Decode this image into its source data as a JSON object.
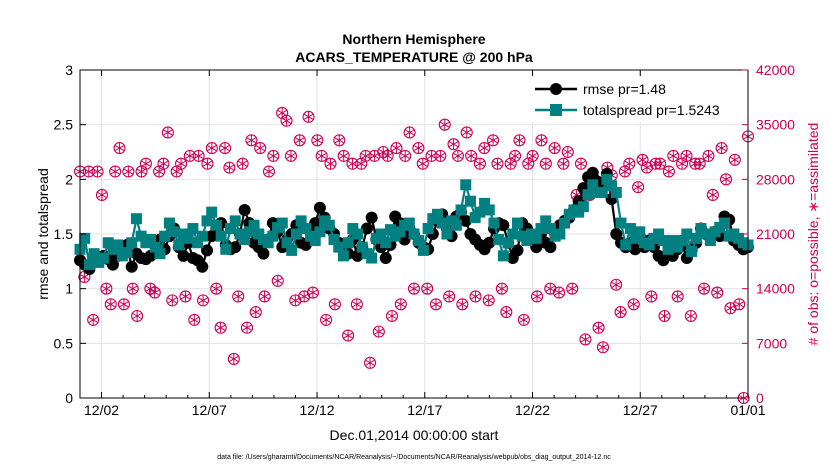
{
  "chart_data": {
    "type": "line",
    "title": "Northern Hemisphere",
    "subtitle": "ACARS_TEMPERATURE @ 200 hPa",
    "xlabel": "Dec.01,2014 00:00:00 start",
    "ylabel": "rmse and totalspread",
    "y2label": "# of obs: o=possible, ∗=assimilated",
    "footnote": "data file: /Users/gharamti/Documents/NCAR/Reanalysis/~/Documents/NCAR/Reanalysis/webpub/obs_diag_output_2014-12.nc",
    "xlim": [
      0,
      31
    ],
    "ylim": [
      0,
      3
    ],
    "y2lim": [
      0,
      42000
    ],
    "x_ticks": [
      1,
      6,
      11,
      16,
      21,
      26,
      31
    ],
    "x_tick_labels": [
      "12/02",
      "12/07",
      "12/12",
      "12/17",
      "12/22",
      "12/27",
      "01/01"
    ],
    "y_ticks": [
      0,
      0.5,
      1,
      1.5,
      2,
      2.5,
      3
    ],
    "y_tick_labels": [
      "0",
      "0.5",
      "1",
      "1.5",
      "2",
      "2.5",
      "3"
    ],
    "y2_ticks": [
      0,
      7000,
      14000,
      21000,
      28000,
      35000,
      42000
    ],
    "y2_tick_labels": [
      "0",
      "7000",
      "14000",
      "21000",
      "28000",
      "35000",
      "42000"
    ],
    "grid": true,
    "legend_position": "top-right",
    "colors": {
      "rmse": "#000000",
      "totalspread": "#008080",
      "obs": "#cc0055"
    },
    "series": [
      {
        "name": "rmse pr=1.48",
        "legend": "rmse pr=1.48",
        "values": [
          1.26,
          1.22,
          1.18,
          1.28,
          1.25,
          1.3,
          1.27,
          1.22,
          1.3,
          1.35,
          1.4,
          1.2,
          1.32,
          1.28,
          1.27,
          1.3,
          1.33,
          1.45,
          1.36,
          1.48,
          1.55,
          1.38,
          1.3,
          1.42,
          1.28,
          1.26,
          1.2,
          1.35,
          1.48,
          1.55,
          1.6,
          1.4,
          1.36,
          1.38,
          1.5,
          1.72,
          1.6,
          1.42,
          1.38,
          1.32,
          1.45,
          1.6,
          1.52,
          1.38,
          1.45,
          1.5,
          1.58,
          1.42,
          1.4,
          1.52,
          1.6,
          1.74,
          1.65,
          1.55,
          1.5,
          1.42,
          1.38,
          1.32,
          1.45,
          1.3,
          1.38,
          1.55,
          1.65,
          1.45,
          1.38,
          1.28,
          1.4,
          1.66,
          1.6,
          1.45,
          1.55,
          1.5,
          1.42,
          1.38,
          1.36,
          1.5,
          1.62,
          1.68,
          1.55,
          1.48,
          1.66,
          1.7,
          1.62,
          1.5,
          1.45,
          1.4,
          1.36,
          1.42,
          1.55,
          1.6,
          1.58,
          1.42,
          1.28,
          1.35,
          1.6,
          1.55,
          1.45,
          1.38,
          1.5,
          1.42,
          1.38,
          1.5,
          1.58,
          1.62,
          1.65,
          1.72,
          1.8,
          1.92,
          2.02,
          2.06,
          1.98,
          1.96,
          2.05,
          1.82,
          1.5,
          1.42,
          1.38,
          1.42,
          1.36,
          1.48,
          1.38,
          1.44,
          1.38,
          1.3,
          1.26,
          1.32,
          1.3,
          1.36,
          1.4,
          1.28,
          1.35,
          1.42,
          1.55,
          1.5,
          1.46,
          1.52,
          1.48,
          1.66,
          1.63,
          1.44,
          1.4,
          1.36,
          1.38
        ]
      },
      {
        "name": "totalspread pr=1.5243",
        "legend": "totalspread pr=1.5243",
        "values": [
          1.36,
          1.46,
          1.22,
          1.32,
          1.24,
          1.28,
          1.42,
          1.36,
          1.4,
          1.3,
          1.33,
          1.42,
          1.64,
          1.48,
          1.42,
          1.45,
          1.38,
          1.32,
          1.48,
          1.6,
          1.52,
          1.4,
          1.5,
          1.46,
          1.55,
          1.42,
          1.48,
          1.62,
          1.7,
          1.58,
          1.48,
          1.36,
          1.55,
          1.62,
          1.5,
          1.45,
          1.52,
          1.58,
          1.5,
          1.45,
          1.42,
          1.48,
          1.56,
          1.6,
          1.42,
          1.35,
          1.5,
          1.62,
          1.55,
          1.48,
          1.44,
          1.52,
          1.62,
          1.58,
          1.45,
          1.38,
          1.3,
          1.42,
          1.55,
          1.5,
          1.38,
          1.32,
          1.28,
          1.46,
          1.5,
          1.42,
          1.54,
          1.48,
          1.52,
          1.58,
          1.6,
          1.5,
          1.44,
          1.35,
          1.55,
          1.64,
          1.68,
          1.6,
          1.5,
          1.62,
          1.58,
          1.72,
          1.95,
          1.8,
          1.65,
          1.7,
          1.78,
          1.72,
          1.6,
          1.45,
          1.3,
          1.42,
          1.5,
          1.6,
          1.48,
          1.44,
          1.5,
          1.46,
          1.55,
          1.62,
          1.55,
          1.48,
          1.5,
          1.6,
          1.68,
          1.72,
          1.7,
          1.75,
          1.86,
          1.95,
          1.88,
          1.88,
          2.0,
          1.94,
          1.88,
          1.6,
          1.4,
          1.55,
          1.46,
          1.52,
          1.42,
          1.4,
          1.46,
          1.5,
          1.44,
          1.36,
          1.44,
          1.38,
          1.44,
          1.5,
          1.34,
          1.46,
          1.55,
          1.5,
          1.44,
          1.52,
          1.56,
          1.6,
          1.48,
          1.5,
          1.46,
          1.42,
          1.4
        ]
      },
      {
        "name": "obs possible",
        "values": [
          29000,
          15500,
          29000,
          10000,
          29000,
          26000,
          14000,
          12000,
          29000,
          32000,
          12000,
          29000,
          14000,
          10500,
          29000,
          30000,
          14000,
          13500,
          29000,
          30000,
          34000,
          12500,
          29000,
          30000,
          13000,
          31000,
          10000,
          31000,
          12500,
          30000,
          32000,
          14000,
          9000,
          32000,
          29500,
          5000,
          13000,
          30000,
          9000,
          33000,
          11000,
          32000,
          13000,
          29000,
          31000,
          15000,
          36500,
          35500,
          31000,
          12500,
          33000,
          13000,
          36000,
          13500,
          33000,
          31000,
          10000,
          30000,
          12000,
          33000,
          31000,
          8000,
          30000,
          12000,
          30000,
          31000,
          4500,
          31000,
          8500,
          31500,
          31000,
          10500,
          32000,
          12000,
          31000,
          34000,
          14000,
          32000,
          30000,
          14000,
          31000,
          12000,
          31000,
          35000,
          13000,
          32500,
          31000,
          12000,
          34000,
          31000,
          13000,
          30000,
          32000,
          12500,
          33000,
          30000,
          14000,
          11000,
          30000,
          31000,
          33000,
          10000,
          30000,
          31000,
          13000,
          33000,
          30000,
          14000,
          32000,
          13500,
          30000,
          31500,
          14000,
          26000,
          30000,
          7500,
          26000,
          28000,
          9000,
          6500,
          29500,
          28500,
          14500,
          11000,
          29000,
          30000,
          12000,
          27000,
          30500,
          29500,
          13000,
          30000,
          30000,
          10500,
          29000,
          31000,
          13000,
          30000,
          31000,
          10500,
          30000,
          30000,
          14000,
          31000,
          26000,
          13500,
          32000,
          28000,
          11500,
          30500,
          12000,
          0,
          33500
        ]
      },
      {
        "name": "obs assimilated",
        "values": [
          29000,
          15500,
          29000,
          10000,
          29000,
          26000,
          14000,
          12000,
          29000,
          32000,
          12000,
          29000,
          14000,
          10500,
          29000,
          30000,
          14000,
          13500,
          29000,
          30000,
          34000,
          12500,
          29000,
          30000,
          13000,
          31000,
          10000,
          31000,
          12500,
          30000,
          32000,
          14000,
          9000,
          32000,
          29500,
          5000,
          13000,
          30000,
          9000,
          33000,
          11000,
          32000,
          13000,
          29000,
          31000,
          15000,
          36500,
          35500,
          31000,
          12500,
          33000,
          13000,
          36000,
          13500,
          33000,
          31000,
          10000,
          30000,
          12000,
          33000,
          31000,
          8000,
          30000,
          12000,
          30000,
          31000,
          4500,
          31000,
          8500,
          31500,
          31000,
          10500,
          32000,
          12000,
          31000,
          34000,
          14000,
          32000,
          30000,
          14000,
          31000,
          12000,
          31000,
          35000,
          13000,
          32500,
          31000,
          12000,
          34000,
          31000,
          13000,
          30000,
          32000,
          12500,
          33000,
          30000,
          14000,
          11000,
          30000,
          31000,
          33000,
          10000,
          30000,
          31000,
          13000,
          33000,
          30000,
          14000,
          32000,
          13500,
          30000,
          31500,
          14000,
          26000,
          30000,
          7500,
          26000,
          28000,
          9000,
          6500,
          29500,
          28500,
          14500,
          11000,
          29000,
          30000,
          12000,
          27000,
          30500,
          29500,
          13000,
          30000,
          30000,
          10500,
          29000,
          31000,
          13000,
          30000,
          31000,
          10500,
          30000,
          30000,
          14000,
          31000,
          26000,
          13500,
          32000,
          28000,
          11500,
          30500,
          12000,
          0,
          33500
        ]
      }
    ]
  }
}
